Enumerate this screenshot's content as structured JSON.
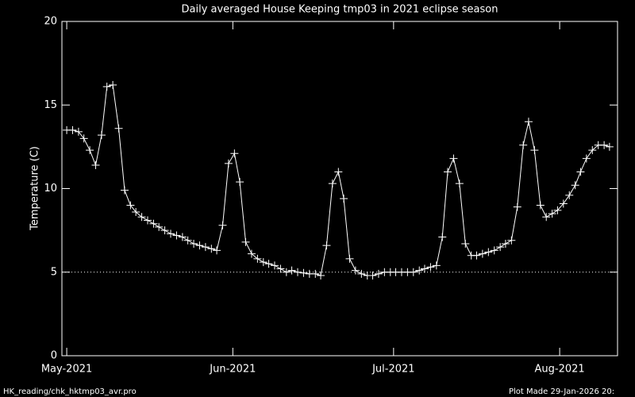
{
  "chart_data": {
    "type": "line",
    "title": "Daily averaged House Keeping tmp03 in 2021 eclipse season",
    "ylabel": "Temperature (C)",
    "footer_left": "HK_reading/chk_hktmp03_avr.pro",
    "footer_right": "Plot Made 29-Jan-2026 20:",
    "color": "#ffffff",
    "marker": "plus",
    "reference_line": 5,
    "x": [
      0,
      1.1,
      2.2,
      3.2,
      4.3,
      5.4,
      6.5,
      7.5,
      8.6,
      9.7,
      10.8,
      11.9,
      12.9,
      14.0,
      15.1,
      16.2,
      17.2,
      18.3,
      19.4,
      20.5,
      21.6,
      22.6,
      23.7,
      24.8,
      25.9,
      27.0,
      28.0,
      29.1,
      30.2,
      31.3,
      32.3,
      33.4,
      34.5,
      35.6,
      36.7,
      37.7,
      38.8,
      39.9,
      41.0,
      42.0,
      43.1,
      44.2,
      45.3,
      46.4,
      47.4,
      48.5,
      49.6,
      50.7,
      51.7,
      52.8,
      53.9,
      55.0,
      56.1,
      57.1,
      58.2,
      59.3,
      60.4,
      61.4,
      62.5,
      63.6,
      64.7,
      65.8,
      66.8,
      67.9,
      69.0,
      70.1,
      71.1,
      72.2,
      73.3,
      74.4,
      75.5,
      76.5,
      77.6,
      78.7,
      79.8,
      80.9,
      81.9,
      83.0,
      84.1,
      85.2,
      86.2,
      87.3,
      88.4,
      89.5,
      90.6,
      91.6,
      92.7,
      93.8,
      94.9,
      95.9,
      97.0,
      98.1,
      99.2,
      100.3,
      101.3
    ],
    "values": [
      13.5,
      13.5,
      13.4,
      13.0,
      12.3,
      11.4,
      13.2,
      16.1,
      16.2,
      13.6,
      9.9,
      9.0,
      8.6,
      8.3,
      8.1,
      7.9,
      7.7,
      7.5,
      7.3,
      7.2,
      7.1,
      6.9,
      6.7,
      6.6,
      6.5,
      6.4,
      6.3,
      7.8,
      11.5,
      12.1,
      10.4,
      6.8,
      6.1,
      5.8,
      5.6,
      5.5,
      5.4,
      5.2,
      5.0,
      5.1,
      5.0,
      4.95,
      4.9,
      4.9,
      4.8,
      6.6,
      10.3,
      11.0,
      9.4,
      5.8,
      5.1,
      4.9,
      4.8,
      4.8,
      4.9,
      5.0,
      5.0,
      5.0,
      5.0,
      5.0,
      5.0,
      5.1,
      5.2,
      5.3,
      5.4,
      7.1,
      11.0,
      11.8,
      10.3,
      6.7,
      6.0,
      6.0,
      6.1,
      6.2,
      6.3,
      6.5,
      6.7,
      6.9,
      8.9,
      12.6,
      14.0,
      12.3,
      9.0,
      8.3,
      8.5,
      8.7,
      9.1,
      9.6,
      10.2,
      11.0,
      11.8,
      12.3,
      12.6,
      12.6,
      12.5
    ],
    "xlim": [
      -0.9,
      102.8
    ],
    "xticks": [
      {
        "value": 0,
        "label": "May-2021"
      },
      {
        "value": 31,
        "label": "Jun-2021"
      },
      {
        "value": 61,
        "label": "Jul-2021"
      },
      {
        "value": 92,
        "label": "Aug-2021"
      }
    ],
    "ylim": [
      0,
      20
    ],
    "yticks": [
      0,
      5,
      10,
      15,
      20
    ]
  }
}
